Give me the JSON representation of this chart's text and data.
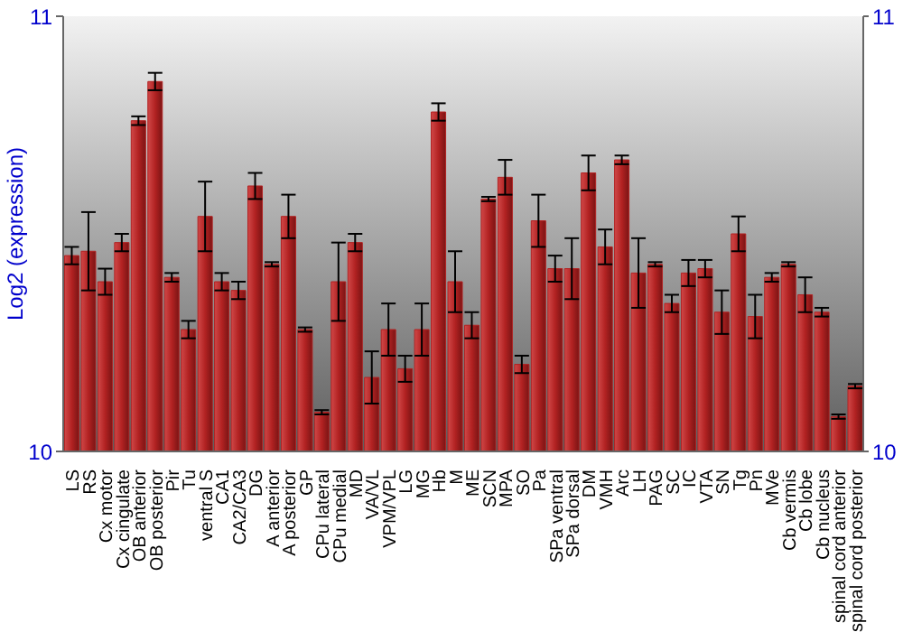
{
  "chart_data": {
    "type": "bar",
    "ylabel": "Log2 (expression)",
    "categories": [
      "LS",
      "RS",
      "Cx motor",
      "Cx cingulate",
      "OB anterior",
      "OB posterior",
      "Pir",
      "Tu",
      "ventral S",
      "CA1",
      "CA2/CA3",
      "DG",
      "A anterior",
      "A posterior",
      "GP",
      "CPu lateral",
      "CPu medial",
      "MD",
      "VA/VL",
      "VPM/VPL",
      "LG",
      "MG",
      "Hb",
      "M",
      "ME",
      "SCN",
      "MPA",
      "SO",
      "Pa",
      "SPa ventral",
      "SPa dorsal",
      "DM",
      "VMH",
      "Arc",
      "LH",
      "PAG",
      "SC",
      "IC",
      "VTA",
      "SN",
      "Tg",
      "Pn",
      "MVe",
      "Cb vermis",
      "Cb lobe",
      "Cb nucleus",
      "spinal cord anterior",
      "spinal cord posterior"
    ],
    "values": [
      10.45,
      10.46,
      10.39,
      10.48,
      10.76,
      10.85,
      10.4,
      10.28,
      10.54,
      10.39,
      10.37,
      10.61,
      10.43,
      10.54,
      10.28,
      10.09,
      10.39,
      10.48,
      10.17,
      10.28,
      10.19,
      10.28,
      10.78,
      10.39,
      10.29,
      10.58,
      10.63,
      10.2,
      10.53,
      10.42,
      10.42,
      10.64,
      10.47,
      10.67,
      10.41,
      10.43,
      10.34,
      10.41,
      10.42,
      10.32,
      10.5,
      10.31,
      10.4,
      10.43,
      10.36,
      10.32,
      10.08,
      10.15
    ],
    "errors": [
      0.02,
      0.09,
      0.03,
      0.02,
      0.01,
      0.02,
      0.01,
      0.02,
      0.08,
      0.02,
      0.02,
      0.03,
      0.005,
      0.05,
      0.005,
      0.005,
      0.09,
      0.02,
      0.06,
      0.06,
      0.03,
      0.06,
      0.02,
      0.07,
      0.03,
      0.005,
      0.04,
      0.02,
      0.06,
      0.03,
      0.07,
      0.04,
      0.04,
      0.01,
      0.08,
      0.005,
      0.02,
      0.03,
      0.02,
      0.05,
      0.04,
      0.05,
      0.01,
      0.005,
      0.04,
      0.01,
      0.005,
      0.005
    ],
    "color": "#b22222",
    "ylim": [
      10,
      11
    ],
    "yticks": [
      10,
      11
    ],
    "y2lim": [
      10,
      11
    ],
    "y2ticks": [
      10,
      11
    ]
  }
}
